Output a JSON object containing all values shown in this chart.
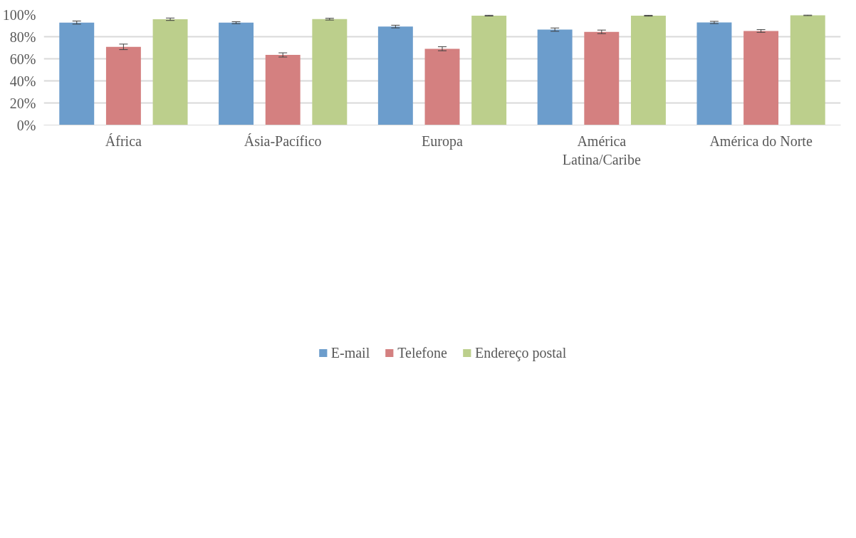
{
  "chart_data": {
    "type": "bar",
    "categories": [
      "África",
      "Ásia-Pacífico",
      "Europa",
      "América Latina/Caribe",
      "América do Norte"
    ],
    "series": [
      {
        "name": "E-mail",
        "color": "#6c9dcc",
        "values": [
          92.8,
          92.7,
          89.2,
          86.4,
          92.9
        ],
        "errors": [
          1.4,
          0.9,
          1.2,
          1.5,
          1.0
        ]
      },
      {
        "name": "Telefone",
        "color": "#d48080",
        "values": [
          70.8,
          63.5,
          69.1,
          84.4,
          85.2
        ],
        "errors": [
          2.5,
          1.9,
          1.8,
          1.6,
          1.2
        ]
      },
      {
        "name": "Endereço postal",
        "color": "#bccf8c",
        "values": [
          95.8,
          95.9,
          99.1,
          99.0,
          99.4
        ],
        "errors": [
          1.1,
          0.8,
          0.4,
          0.4,
          0.3
        ]
      }
    ],
    "ylim": [
      0,
      100
    ],
    "yticks": [
      {
        "value": 0,
        "label": "0%"
      },
      {
        "value": 20,
        "label": "20%"
      },
      {
        "value": 40,
        "label": "40%"
      },
      {
        "value": 60,
        "label": "60%"
      },
      {
        "value": 80,
        "label": "80%"
      },
      {
        "value": 100,
        "label": "100%"
      }
    ],
    "grid": "y",
    "legend": "bottom"
  }
}
